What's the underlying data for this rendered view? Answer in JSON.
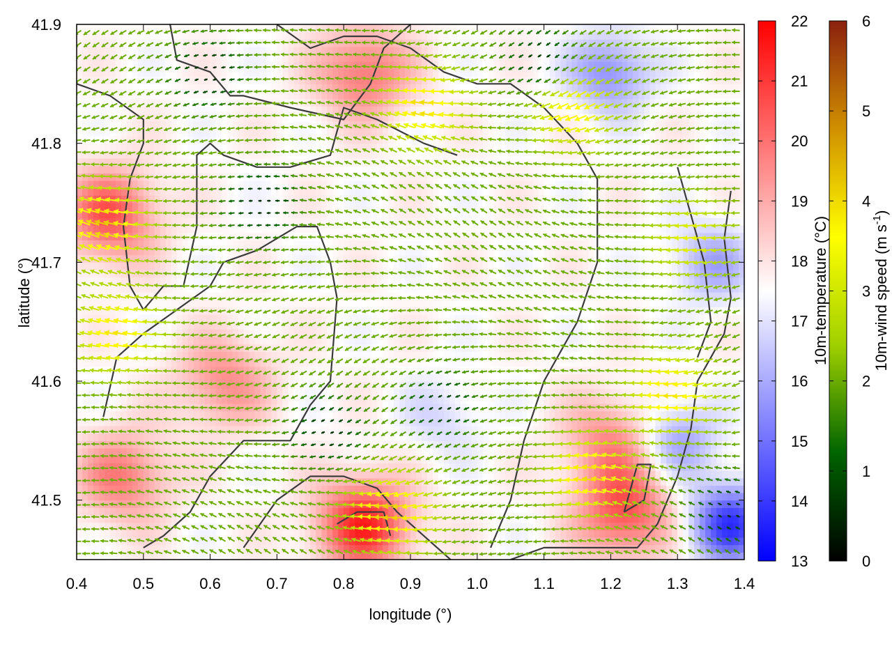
{
  "chart_data": {
    "type": "heatmap",
    "overlay": "wind vector field with coastline contours",
    "xlabel": "longitude (°)",
    "ylabel": "latitude (°)",
    "xlim": [
      0.4,
      1.4
    ],
    "ylim": [
      41.45,
      41.9
    ],
    "x_ticks": [
      "0.4",
      "0.5",
      "0.6",
      "0.7",
      "0.8",
      "0.9",
      "1.0",
      "1.1",
      "1.2",
      "1.3",
      "1.4"
    ],
    "y_ticks": [
      "41.5",
      "41.6",
      "41.7",
      "41.8",
      "41.9"
    ],
    "grid": false,
    "colorbars": [
      {
        "label": "10m-temperature (°C)",
        "range": [
          13,
          22
        ],
        "ticks": [
          "13",
          "14",
          "15",
          "16",
          "17",
          "18",
          "19",
          "20",
          "21",
          "22"
        ],
        "colors": [
          "#0000ff",
          "#ffffff",
          "#ff0000"
        ]
      },
      {
        "label": "10m-wind speed (m s-1)",
        "label_main": "10m-wind speed (m s",
        "label_sup": "-1",
        "label_end": ")",
        "range": [
          0,
          6
        ],
        "ticks": [
          "0",
          "1",
          "2",
          "3",
          "4",
          "5",
          "6"
        ],
        "colors": [
          "#000000",
          "#006400",
          "#a0d000",
          "#ffff00",
          "#d09000",
          "#8b2010"
        ]
      }
    ],
    "temperature_field": {
      "approx_hotspots": [
        {
          "lon": 0.45,
          "lat": 41.74,
          "temp": 20.5
        },
        {
          "lon": 0.47,
          "lat": 41.52,
          "temp": 19.8
        },
        {
          "lon": 0.83,
          "lat": 41.48,
          "temp": 21.3
        },
        {
          "lon": 0.83,
          "lat": 41.86,
          "temp": 20.0
        },
        {
          "lon": 1.22,
          "lat": 41.49,
          "temp": 20.5
        },
        {
          "lon": 1.2,
          "lat": 41.55,
          "temp": 19.5
        },
        {
          "lon": 0.62,
          "lat": 41.6,
          "temp": 19.5
        }
      ],
      "approx_coldspots": [
        {
          "lon": 1.38,
          "lat": 41.48,
          "temp": 14.0
        },
        {
          "lon": 1.2,
          "lat": 41.86,
          "temp": 15.5
        },
        {
          "lon": 1.35,
          "lat": 41.7,
          "temp": 16.0
        },
        {
          "lon": 0.95,
          "lat": 41.57,
          "temp": 16.8
        },
        {
          "lon": 1.3,
          "lat": 41.55,
          "temp": 15.8
        }
      ],
      "background_temp": 17.6
    },
    "wind_field": {
      "prevailing_direction": "from east (vectors point west)",
      "approx_fast_zones": [
        {
          "lon": 0.45,
          "lat": 41.73,
          "speed": 4.2
        },
        {
          "lon": 0.47,
          "lat": 41.64,
          "speed": 3.9
        },
        {
          "lon": 0.93,
          "lat": 41.83,
          "speed": 4.0
        },
        {
          "lon": 1.15,
          "lat": 41.83,
          "speed": 3.8
        },
        {
          "lon": 1.18,
          "lat": 41.52,
          "speed": 4.0
        },
        {
          "lon": 1.3,
          "lat": 41.59,
          "speed": 3.9
        },
        {
          "lon": 0.88,
          "lat": 41.49,
          "speed": 4.2
        },
        {
          "lon": 1.33,
          "lat": 41.72,
          "speed": 3.3
        }
      ],
      "approx_calm_zones": [
        {
          "lon": 0.68,
          "lat": 41.75,
          "speed": 0.4
        },
        {
          "lon": 0.6,
          "lat": 41.86,
          "speed": 0.4
        },
        {
          "lon": 0.78,
          "lat": 41.56,
          "speed": 0.5
        },
        {
          "lon": 0.95,
          "lat": 41.58,
          "speed": 0.6
        },
        {
          "lon": 1.38,
          "lat": 41.49,
          "speed": 0.5
        },
        {
          "lon": 1.1,
          "lat": 41.87,
          "speed": 0.5
        }
      ],
      "base_speed": 2.0
    },
    "contours": [
      [
        [
          0.4,
          41.85
        ],
        [
          0.45,
          41.84
        ],
        [
          0.5,
          41.82
        ],
        [
          0.5,
          41.8
        ],
        [
          0.48,
          41.77
        ],
        [
          0.47,
          41.73
        ],
        [
          0.48,
          41.68
        ],
        [
          0.5,
          41.66
        ],
        [
          0.53,
          41.68
        ],
        [
          0.56,
          41.68
        ],
        [
          0.58,
          41.73
        ],
        [
          0.58,
          41.79
        ],
        [
          0.6,
          41.8
        ],
        [
          0.62,
          41.79
        ],
        [
          0.67,
          41.78
        ],
        [
          0.72,
          41.78
        ],
        [
          0.78,
          41.79
        ],
        [
          0.8,
          41.83
        ],
        [
          0.85,
          41.82
        ],
        [
          0.92,
          41.8
        ],
        [
          0.97,
          41.79
        ]
      ],
      [
        [
          0.54,
          41.9
        ],
        [
          0.55,
          41.87
        ],
        [
          0.6,
          41.86
        ],
        [
          0.63,
          41.84
        ],
        [
          0.65,
          41.84
        ],
        [
          0.72,
          41.83
        ],
        [
          0.8,
          41.82
        ],
        [
          0.84,
          41.85
        ],
        [
          0.86,
          41.88
        ],
        [
          0.9,
          41.9
        ]
      ],
      [
        [
          0.44,
          41.57
        ],
        [
          0.46,
          41.62
        ],
        [
          0.5,
          41.64
        ],
        [
          0.55,
          41.66
        ],
        [
          0.6,
          41.68
        ],
        [
          0.62,
          41.7
        ],
        [
          0.67,
          41.71
        ],
        [
          0.7,
          41.72
        ],
        [
          0.73,
          41.73
        ],
        [
          0.76,
          41.73
        ],
        [
          0.78,
          41.7
        ],
        [
          0.79,
          41.67
        ],
        [
          0.78,
          41.6
        ],
        [
          0.75,
          41.58
        ],
        [
          0.73,
          41.56
        ],
        [
          0.72,
          41.55
        ],
        [
          0.68,
          41.55
        ],
        [
          0.65,
          41.55
        ],
        [
          0.6,
          41.52
        ],
        [
          0.57,
          41.49
        ],
        [
          0.53,
          41.47
        ],
        [
          0.5,
          41.46
        ]
      ],
      [
        [
          0.7,
          41.9
        ],
        [
          0.75,
          41.88
        ],
        [
          0.8,
          41.89
        ],
        [
          0.85,
          41.89
        ],
        [
          0.9,
          41.88
        ],
        [
          0.95,
          41.86
        ],
        [
          1.0,
          41.85
        ],
        [
          1.05,
          41.85
        ],
        [
          1.1,
          41.83
        ],
        [
          1.15,
          41.8
        ],
        [
          1.18,
          41.77
        ],
        [
          1.18,
          41.7
        ],
        [
          1.15,
          41.65
        ],
        [
          1.1,
          41.6
        ],
        [
          1.07,
          41.55
        ],
        [
          1.05,
          41.5
        ],
        [
          1.02,
          41.46
        ]
      ],
      [
        [
          0.65,
          41.46
        ],
        [
          0.7,
          41.5
        ],
        [
          0.75,
          41.52
        ],
        [
          0.8,
          41.52
        ],
        [
          0.85,
          41.51
        ],
        [
          0.88,
          41.49
        ],
        [
          0.92,
          41.47
        ],
        [
          0.96,
          41.45
        ]
      ],
      [
        [
          0.79,
          41.48
        ],
        [
          0.82,
          41.49
        ],
        [
          0.86,
          41.49
        ],
        [
          0.87,
          41.47
        ]
      ],
      [
        [
          1.05,
          41.45
        ],
        [
          1.1,
          41.46
        ],
        [
          1.15,
          41.46
        ],
        [
          1.2,
          41.46
        ],
        [
          1.24,
          41.46
        ],
        [
          1.27,
          41.48
        ],
        [
          1.3,
          41.52
        ],
        [
          1.32,
          41.56
        ],
        [
          1.33,
          41.6
        ],
        [
          1.35,
          41.62
        ],
        [
          1.37,
          41.64
        ],
        [
          1.38,
          41.67
        ],
        [
          1.37,
          41.72
        ],
        [
          1.38,
          41.76
        ]
      ],
      [
        [
          1.22,
          41.49
        ],
        [
          1.25,
          41.5
        ],
        [
          1.26,
          41.53
        ],
        [
          1.24,
          41.53
        ],
        [
          1.22,
          41.49
        ]
      ],
      [
        [
          1.3,
          41.78
        ],
        [
          1.32,
          41.74
        ],
        [
          1.34,
          41.7
        ],
        [
          1.35,
          41.65
        ],
        [
          1.33,
          41.62
        ]
      ]
    ]
  }
}
